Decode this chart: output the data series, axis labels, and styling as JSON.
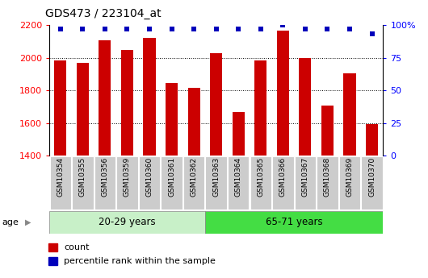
{
  "title": "GDS473 / 223104_at",
  "samples": [
    "GSM10354",
    "GSM10355",
    "GSM10356",
    "GSM10359",
    "GSM10360",
    "GSM10361",
    "GSM10362",
    "GSM10363",
    "GSM10364",
    "GSM10365",
    "GSM10366",
    "GSM10367",
    "GSM10368",
    "GSM10369",
    "GSM10370"
  ],
  "counts": [
    1985,
    1970,
    2105,
    2045,
    2120,
    1845,
    1815,
    2030,
    1665,
    1985,
    2165,
    2000,
    1705,
    1905,
    1595
  ],
  "percentile_ranks": [
    97,
    97,
    97,
    97,
    97,
    97,
    97,
    97,
    97,
    97,
    100,
    97,
    97,
    97,
    93
  ],
  "group1_count": 7,
  "group2_count": 8,
  "group1_label": "20-29 years",
  "group2_label": "65-71 years",
  "group1_color": "#C8F0C8",
  "group2_color": "#44DD44",
  "ylim_left": [
    1400,
    2200
  ],
  "ylim_right": [
    0,
    100
  ],
  "yticks_left": [
    1400,
    1600,
    1800,
    2000,
    2200
  ],
  "yticks_right": [
    0,
    25,
    50,
    75,
    100
  ],
  "right_tick_labels": [
    "0",
    "25",
    "50",
    "75",
    "100%"
  ],
  "bar_color": "#CC0000",
  "dot_color": "#0000BB",
  "bar_width": 0.55,
  "age_label": "age",
  "legend_count_label": "count",
  "legend_pct_label": "percentile rank within the sample",
  "plot_bg_color": "#FFFFFF",
  "tick_label_bg": "#D8D8D8"
}
